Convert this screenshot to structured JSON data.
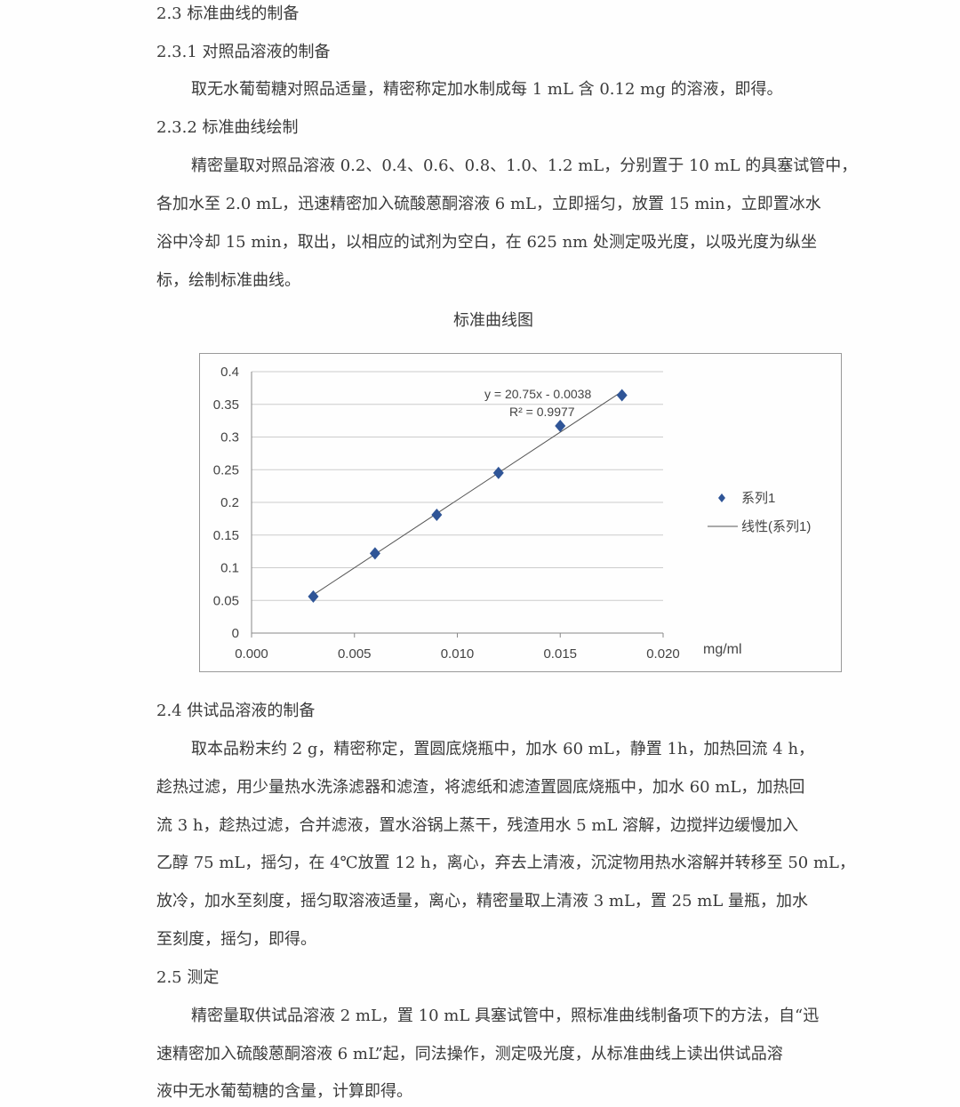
{
  "section_2_3": {
    "heading": "2.3 标准曲线的制备",
    "sub1_heading": "2.3.1 对照品溶液的制备",
    "sub1_text": [
      "取无水葡萄糖对照品适量，精密称定加水制成每 1 mL 含 0.12 mg 的溶液，即得。"
    ],
    "sub2_heading": "2.3.2  标准曲线绘制",
    "sub2_text": [
      "精密量取对照品溶液 0.2、0.4、0.6、0.8、1.0、1.2 mL，分别置于 10 mL 的具塞试管中，",
      "各加水至 2.0 mL，迅速精密加入硫酸蒽酮溶液 6 mL，立即摇匀，放置 15 min，立即置冰水",
      "浴中冷却 15 min，取出，以相应的试剂为空白，在 625 nm 处测定吸光度，以吸光度为纵坐",
      "标，绘制标准曲线。"
    ]
  },
  "chart_data": {
    "type": "scatter",
    "title": "标准曲线图",
    "xlabel": "mg/ml",
    "ylabel": "",
    "xlim": [
      0,
      0.02
    ],
    "ylim": [
      0,
      0.4
    ],
    "x_ticks": [
      "0.000",
      "0.005",
      "0.010",
      "0.015",
      "0.020"
    ],
    "y_ticks": [
      "0",
      "0.05",
      "0.1",
      "0.15",
      "0.2",
      "0.25",
      "0.3",
      "0.35",
      "0.4"
    ],
    "grid": "horizontal",
    "legend_position": "right",
    "series": [
      {
        "name": "系列1",
        "x": [
          0.003,
          0.006,
          0.009,
          0.012,
          0.015,
          0.018
        ],
        "y": [
          0.056,
          0.122,
          0.181,
          0.245,
          0.317,
          0.364
        ],
        "color": "#2f5597",
        "marker": "diamond"
      }
    ],
    "trendline": {
      "name": "线性(系列1)",
      "slope": 20.75,
      "intercept": -0.0038,
      "equation": "y = 20.75x - 0.0038",
      "r2_label": "R² = 0.9977",
      "color": "#555555"
    }
  },
  "section_2_4": {
    "heading": "2.4 供试品溶液的制备",
    "text": [
      "取本品粉末约 2 g，精密称定，置圆底烧瓶中，加水 60 mL，静置 1h，加热回流 4 h，",
      "趁热过滤，用少量热水洗涤滤器和滤渣，将滤纸和滤渣置圆底烧瓶中，加水 60 mL，加热回",
      "流 3 h，趁热过滤，合并滤液，置水浴锅上蒸干，残渣用水 5 mL 溶解，边搅拌边缓慢加入",
      "乙醇 75 mL，摇匀，在 4℃放置 12 h，离心，弃去上清液，沉淀物用热水溶解并转移至 50 mL，",
      "放冷，加水至刻度，摇匀取溶液适量，离心，精密量取上清液 3 mL，置 25 mL 量瓶，加水",
      "至刻度，摇匀，即得。"
    ]
  },
  "section_2_5": {
    "heading": "2.5 测定",
    "text": [
      "精密量取供试品溶液 2 mL，置 10 mL 具塞试管中，照标准曲线制备项下的方法，自“迅",
      "速精密加入硫酸蒽酮溶液 6 mL”起，同法操作，测定吸光度，从标准曲线上读出供试品溶",
      "液中无水葡萄糖的含量，计算即得。"
    ]
  }
}
